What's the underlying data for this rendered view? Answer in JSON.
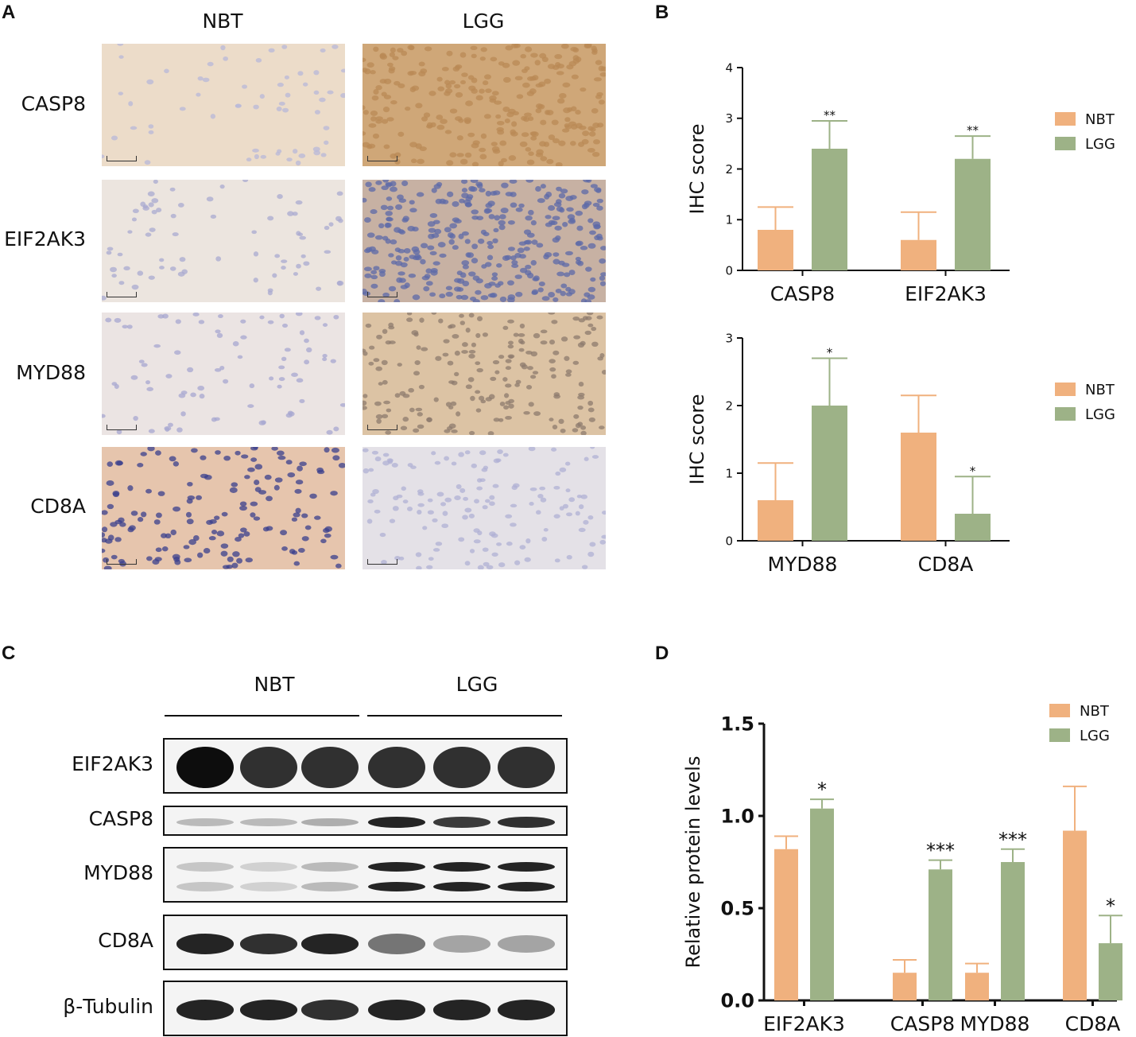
{
  "panels": {
    "a": "A",
    "b": "B",
    "c": "C",
    "d": "D"
  },
  "ihc_images": {
    "column_headers": [
      "NBT",
      "LGG"
    ],
    "row_labels": [
      "CASP8",
      "EIF2AK3",
      "MYD88",
      "CD8A"
    ],
    "stain_colors": {
      "nbt": [
        "#ecdcc9",
        "#ece5df",
        "#ebe4e3",
        "#e6c5ad"
      ],
      "lgg": [
        "#cfa778",
        "#c7b1a3",
        "#dcc3a4",
        "#e4e1e7"
      ]
    }
  },
  "western_blot": {
    "group_labels": [
      "NBT",
      "LGG"
    ],
    "row_labels": [
      "EIF2AK3",
      "CASP8",
      "MYD88",
      "CD8A",
      "β-Tubulin"
    ],
    "band_intensity": [
      [
        1.0,
        0.85,
        0.85,
        0.85,
        0.85,
        0.85
      ],
      [
        0.25,
        0.25,
        0.3,
        0.9,
        0.8,
        0.85
      ],
      [
        0.2,
        0.15,
        0.25,
        0.9,
        0.9,
        0.9
      ],
      [
        0.9,
        0.85,
        0.9,
        0.55,
        0.35,
        0.35
      ],
      [
        0.9,
        0.9,
        0.85,
        0.9,
        0.9,
        0.9
      ]
    ]
  },
  "colors": {
    "nbt": "#f0b17e",
    "lgg": "#9db287"
  },
  "chart_data": [
    {
      "type": "bar",
      "ylabel": "IHC score",
      "categories": [
        "CASP8",
        "EIF2AK3"
      ],
      "ylim": [
        0,
        4
      ],
      "yticks": [
        "0",
        "1",
        "2",
        "3",
        "4"
      ],
      "series": [
        {
          "name": "NBT",
          "values": [
            0.8,
            0.6
          ],
          "errors": [
            0.45,
            0.55
          ]
        },
        {
          "name": "LGG",
          "values": [
            2.4,
            2.2
          ],
          "errors": [
            0.55,
            0.45
          ]
        }
      ],
      "significance": [
        "**",
        "**"
      ],
      "legend": "right"
    },
    {
      "type": "bar",
      "ylabel": "IHC score",
      "categories": [
        "MYD88",
        "CD8A"
      ],
      "ylim": [
        0,
        3
      ],
      "yticks": [
        "0",
        "1",
        "2",
        "3"
      ],
      "series": [
        {
          "name": "NBT",
          "values": [
            0.6,
            1.6
          ],
          "errors": [
            0.55,
            0.55
          ]
        },
        {
          "name": "LGG",
          "values": [
            2.0,
            0.4
          ],
          "errors": [
            0.7,
            0.55
          ]
        }
      ],
      "significance": [
        "*",
        "*"
      ],
      "legend": "right"
    },
    {
      "type": "bar",
      "ylabel": "Relative protein levels",
      "categories": [
        "EIF2AK3",
        "CASP8",
        "MYD88",
        "CD8A"
      ],
      "ylim": [
        0,
        1.5
      ],
      "yticks": [
        "0.0",
        "0.5",
        "1.0",
        "1.5"
      ],
      "series": [
        {
          "name": "NBT",
          "values": [
            0.82,
            0.15,
            0.15,
            0.92
          ],
          "errors": [
            0.07,
            0.07,
            0.05,
            0.24
          ]
        },
        {
          "name": "LGG",
          "values": [
            1.04,
            0.71,
            0.75,
            0.31
          ],
          "errors": [
            0.05,
            0.05,
            0.07,
            0.15
          ]
        }
      ],
      "significance": [
        "*",
        "***",
        "***",
        "*"
      ],
      "legend": "top-right"
    }
  ]
}
